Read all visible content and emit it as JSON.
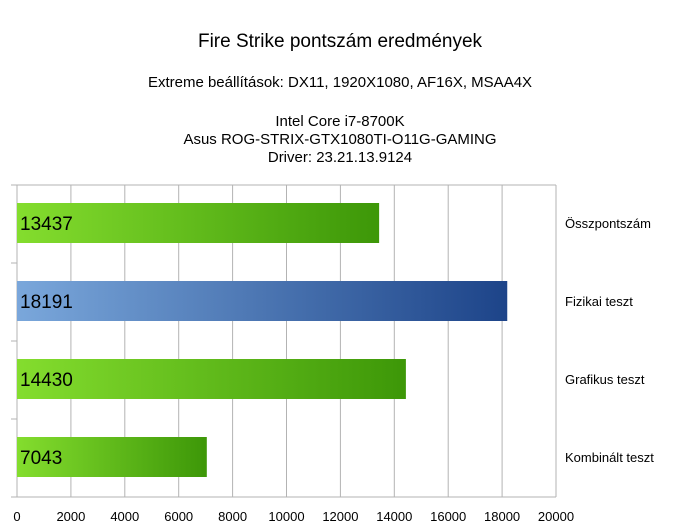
{
  "chart_data": {
    "type": "bar",
    "orientation": "horizontal",
    "title": "Fire Strike pontszám eredmények",
    "subtitle": "Extreme beállítások: DX11, 1920X1080, AF16X, MSAA4X",
    "info_lines": [
      "Intel Core i7-8700K",
      "Asus ROG-STRIX-GTX1080TI-O11G-GAMING",
      "Driver: 23.21.13.9124"
    ],
    "categories": [
      "Összpontszám",
      "Fizikai teszt",
      "Grafikus teszt",
      "Kombinált teszt"
    ],
    "values": [
      13437,
      18191,
      14430,
      7043
    ],
    "value_labels": [
      "13437",
      "18191",
      "14430",
      "7043"
    ],
    "bar_colors": [
      "green",
      "blue",
      "green",
      "green"
    ],
    "colors": {
      "green_light": "#84dd2e",
      "green_dark": "#3d9708",
      "blue_light": "#7aa7db",
      "blue_dark": "#1d4489",
      "grid": "#b3b3b3"
    },
    "xlim": [
      0,
      20000
    ],
    "x_ticks": [
      0,
      2000,
      4000,
      6000,
      8000,
      10000,
      12000,
      14000,
      16000,
      18000,
      20000
    ],
    "x_tick_labels": [
      "0",
      "2000",
      "4000",
      "6000",
      "8000",
      "10000",
      "12000",
      "14000",
      "16000",
      "18000",
      "20000"
    ],
    "xlabel": "",
    "ylabel": "",
    "grid": true,
    "category_labels_position": "right"
  }
}
